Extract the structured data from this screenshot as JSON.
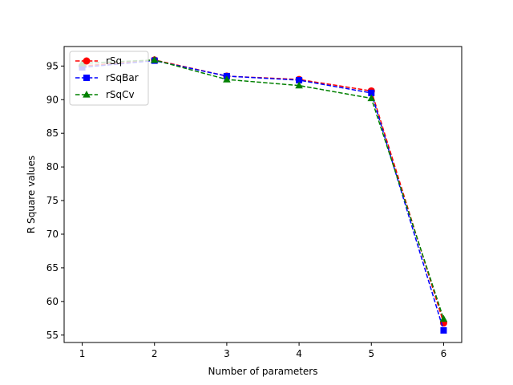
{
  "chart_data": {
    "type": "line",
    "title": "",
    "xlabel": "Number of parameters",
    "ylabel": "R Square values",
    "x": [
      1,
      2,
      3,
      4,
      5,
      6
    ],
    "xlim": [
      0.75,
      6.25
    ],
    "ylim": [
      53.9,
      97.9
    ],
    "xticks": [
      "1",
      "2",
      "3",
      "4",
      "5",
      "6"
    ],
    "yticks": [
      "55",
      "60",
      "65",
      "70",
      "75",
      "80",
      "85",
      "90",
      "95"
    ],
    "grid": false,
    "legend_position": "top-left",
    "series": [
      {
        "name": "rSq",
        "values": [
          95.0,
          95.9,
          93.5,
          93.0,
          91.3,
          56.8
        ],
        "color": "#ff0000",
        "marker": "circle",
        "linestyle": "dashed"
      },
      {
        "name": "rSqBar",
        "values": [
          94.8,
          95.8,
          93.5,
          92.9,
          91.0,
          55.7
        ],
        "color": "#0000ff",
        "marker": "square",
        "linestyle": "dashed"
      },
      {
        "name": "rSqCv",
        "values": [
          95.4,
          95.9,
          93.0,
          92.1,
          90.2,
          57.4
        ],
        "color": "#008000",
        "marker": "triangle",
        "linestyle": "dashed"
      }
    ]
  }
}
